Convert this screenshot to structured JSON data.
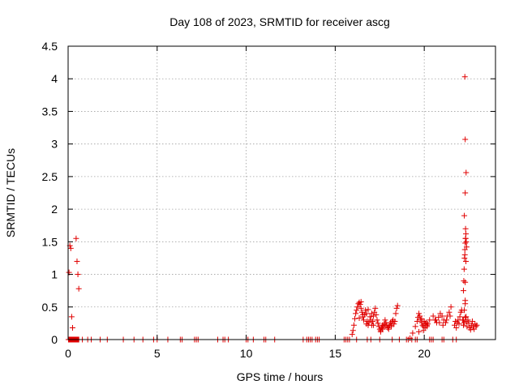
{
  "chart_data": {
    "type": "scatter",
    "title": "Day 108 of 2023, SRMTID for receiver ascg",
    "xlabel": "GPS time / hours",
    "ylabel": "SRMTID / TECUs",
    "xlim": [
      0,
      24
    ],
    "ylim": [
      0,
      4.5
    ],
    "xticks": [
      0,
      5,
      10,
      15,
      20
    ],
    "xtick_labels": [
      "0",
      "5",
      "10",
      "15",
      "20"
    ],
    "yticks": [
      0,
      0.5,
      1,
      1.5,
      2,
      2.5,
      3,
      3.5,
      4,
      4.5
    ],
    "ytick_labels": [
      "0",
      "0.5",
      "1",
      "1.5",
      "2",
      "2.5",
      "3",
      "3.5",
      "4",
      "4.5"
    ],
    "grid": true,
    "marker": "+",
    "color": "#e00000",
    "series": [
      {
        "name": "SRMTID",
        "x": [
          0.02,
          0.05,
          0.08,
          0.1,
          0.12,
          0.15,
          0.18,
          0.2,
          0.22,
          0.25,
          0.28,
          0.3,
          0.32,
          0.35,
          0.38,
          0.4,
          0.42,
          0.45,
          0.48,
          0.5,
          0.52,
          0.55,
          0.58,
          0.6,
          0.05,
          0.1,
          0.15,
          0.2,
          0.25,
          0.45,
          0.5,
          0.55,
          0.6,
          0.8,
          1.1,
          1.3,
          1.8,
          2.2,
          3.1,
          3.7,
          4.2,
          4.8,
          5.0,
          5.6,
          6.3,
          6.4,
          7.1,
          7.2,
          7.3,
          8.4,
          8.7,
          8.8,
          9.0,
          10.0,
          10.1,
          10.4,
          11.0,
          11.1,
          11.6,
          13.2,
          13.4,
          13.5,
          13.6,
          13.7,
          13.9,
          14.0,
          14.1,
          15.5,
          15.6,
          15.7,
          15.8,
          16.2,
          16.8,
          17.0,
          17.5,
          18.2,
          18.6,
          19.0,
          19.1,
          19.3,
          19.5,
          19.6,
          20.3,
          20.4,
          20.5,
          21.0,
          21.1,
          21.6,
          21.8,
          15.95,
          16.0,
          16.05,
          16.1,
          16.15,
          16.2,
          16.25,
          16.3,
          16.35,
          16.4,
          16.45,
          16.5,
          16.55,
          16.6,
          16.65,
          16.7,
          16.75,
          16.8,
          16.85,
          16.9,
          16.95,
          17.0,
          17.05,
          17.1,
          17.15,
          17.2,
          17.25,
          17.3,
          17.35,
          17.4,
          17.45,
          17.5,
          17.55,
          17.6,
          17.65,
          17.7,
          17.75,
          17.8,
          17.85,
          17.9,
          17.95,
          18.0,
          18.05,
          18.1,
          18.15,
          18.2,
          18.25,
          18.3,
          18.35,
          18.4,
          18.45,
          18.5,
          16.35,
          16.45,
          16.55,
          16.75,
          16.85,
          17.05,
          17.15,
          17.55,
          17.65,
          17.8,
          18.0,
          18.15,
          19.2,
          19.35,
          19.5,
          19.6,
          19.65,
          19.7,
          19.75,
          19.8,
          19.85,
          19.9,
          19.95,
          20.0,
          20.05,
          20.1,
          20.15,
          20.2,
          20.3,
          20.5,
          20.6,
          20.7,
          20.8,
          20.9,
          21.0,
          21.1,
          21.2,
          21.3,
          21.4,
          21.5,
          19.7,
          19.85,
          19.95,
          20.05,
          20.15,
          20.65,
          20.85,
          21.05,
          21.25,
          21.45,
          21.7,
          21.75,
          21.8,
          21.85,
          21.9,
          21.95,
          22.0,
          22.05,
          22.1,
          22.15,
          22.2,
          22.25,
          22.3,
          22.35,
          22.4,
          22.45,
          22.5,
          22.55,
          22.6,
          22.65,
          22.7,
          22.75,
          22.8,
          22.85,
          22.9,
          22.95,
          22.2,
          22.22,
          22.24,
          22.26,
          22.28,
          22.3,
          22.32,
          22.34,
          22.36,
          22.38,
          22.2,
          22.25,
          22.3,
          22.35,
          22.25,
          22.3,
          22.35,
          22.28,
          22.32,
          22.3,
          22.28,
          22.3,
          22.32,
          22.34,
          22.3
        ],
        "y": [
          0,
          0,
          0,
          0,
          0,
          0,
          0,
          0,
          0,
          0,
          0,
          0,
          0,
          0,
          0,
          0,
          0,
          0,
          0,
          0,
          0,
          0,
          0,
          0,
          1.03,
          1.44,
          1.4,
          0.35,
          0.18,
          1.55,
          1.2,
          1.0,
          0.78,
          0,
          0,
          0,
          0,
          0,
          0,
          0,
          0,
          0,
          0,
          0,
          0,
          0,
          0,
          0,
          0,
          0,
          0,
          0,
          0,
          0,
          0,
          0,
          0,
          0,
          0,
          0,
          0,
          0,
          0,
          0,
          0,
          0,
          0,
          0,
          0,
          0,
          0,
          0,
          0,
          0,
          0,
          0,
          0,
          0,
          0,
          0,
          0,
          0,
          0,
          0,
          0,
          0,
          0,
          0,
          0,
          0.08,
          0.14,
          0.22,
          0.32,
          0.4,
          0.45,
          0.5,
          0.55,
          0.57,
          0.54,
          0.48,
          0.42,
          0.35,
          0.3,
          0.38,
          0.45,
          0.4,
          0.28,
          0.22,
          0.26,
          0.35,
          0.3,
          0.22,
          0.28,
          0.36,
          0.42,
          0.48,
          0.38,
          0.3,
          0.25,
          0.2,
          0.16,
          0.14,
          0.18,
          0.22,
          0.2,
          0.24,
          0.2,
          0.26,
          0.22,
          0.18,
          0.2,
          0.22,
          0.26,
          0.2,
          0.28,
          0.3,
          0.24,
          0.28,
          0.4,
          0.48,
          0.52,
          0.33,
          0.58,
          0.38,
          0.24,
          0.46,
          0.4,
          0.22,
          0.12,
          0.16,
          0.3,
          0.16,
          0.22,
          0.02,
          0.1,
          0.2,
          0.28,
          0.34,
          0.4,
          0.36,
          0.3,
          0.26,
          0.22,
          0.2,
          0.28,
          0.24,
          0.26,
          0.2,
          0.24,
          0.3,
          0.36,
          0.3,
          0.26,
          0.34,
          0.4,
          0.36,
          0.3,
          0.26,
          0.36,
          0.42,
          0.5,
          0.12,
          0.32,
          0.14,
          0.18,
          0.22,
          0.3,
          0.26,
          0.22,
          0.3,
          0.36,
          0.22,
          0.28,
          0.18,
          0.26,
          0.3,
          0.24,
          0.35,
          0.42,
          0.45,
          0.3,
          0.22,
          0.26,
          0.34,
          0.28,
          0.2,
          0.3,
          0.25,
          0.18,
          0.15,
          0.22,
          0.28,
          0.2,
          0.16,
          0.24,
          0.2,
          0.22,
          0.75,
          0.9,
          1.08,
          1.25,
          1.38,
          1.48,
          1.55,
          1.62,
          1.5,
          1.42,
          0.3,
          0.45,
          0.6,
          0.35,
          1.9,
          2.25,
          2.56,
          1.3,
          1.55,
          3.07,
          4.03,
          0.88,
          1.7,
          1.2,
          0.55
        ]
      }
    ]
  }
}
